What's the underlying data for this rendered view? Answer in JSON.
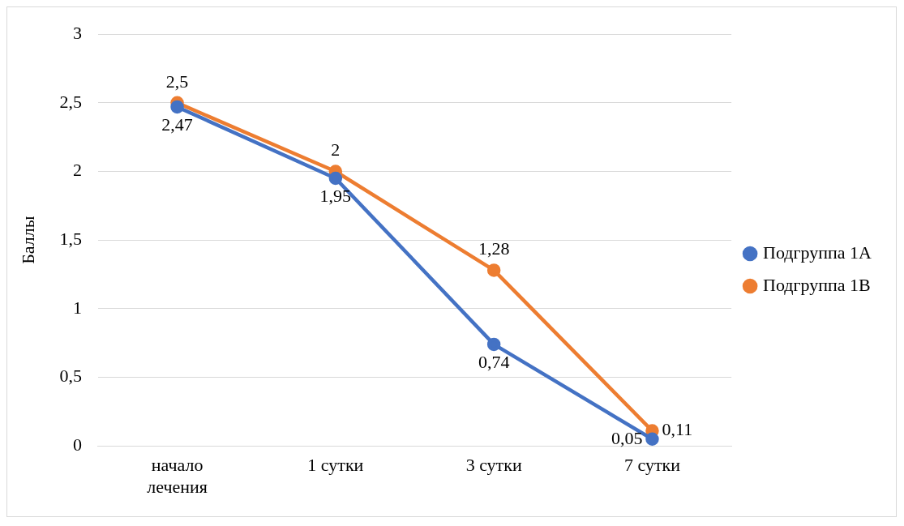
{
  "chart_data": {
    "type": "line",
    "ylabel": "Баллы",
    "categories": [
      "начало лечения",
      "1 сутки",
      "3 сутки",
      "7 сутки"
    ],
    "series": [
      {
        "name": "Подгруппа 1А",
        "color": "#4472c4",
        "values": [
          2.47,
          1.95,
          0.74,
          0.05
        ],
        "value_labels": [
          "2,47",
          "1,95",
          "0,74",
          "0,05"
        ]
      },
      {
        "name": "Подгруппа 1В",
        "color": "#ed7d31",
        "values": [
          2.5,
          2,
          1.28,
          0.11
        ],
        "value_labels": [
          "2,5",
          "2",
          "1,28",
          "0,11"
        ]
      }
    ],
    "ylim": [
      0,
      3
    ],
    "yticks": [
      0,
      {
        "value": 0.5,
        "label": "0,5"
      },
      1,
      {
        "value": 1.5,
        "label": "1,5"
      },
      2,
      {
        "value": 2.5,
        "label": "2,5"
      },
      3
    ],
    "grid": "y",
    "legend": "right",
    "marker": "circle",
    "line_style": "solid"
  }
}
